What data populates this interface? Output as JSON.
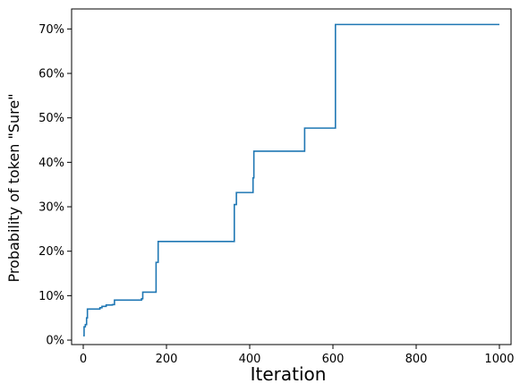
{
  "chart_data": {
    "type": "line",
    "title": "",
    "xlabel": "Iteration",
    "ylabel": "Probability of token \"Sure\"",
    "xlim": [
      -28,
      1028
    ],
    "ylim": [
      -0.01,
      0.745
    ],
    "x_ticks": [
      0,
      200,
      400,
      600,
      800,
      1000
    ],
    "x_tick_labels": [
      "0",
      "200",
      "400",
      "600",
      "800",
      "1000"
    ],
    "y_ticks": [
      0,
      0.1,
      0.2,
      0.3,
      0.4,
      0.5,
      0.6,
      0.7
    ],
    "y_tick_labels": [
      "0%",
      "10%",
      "20%",
      "30%",
      "40%",
      "50%",
      "60%",
      "70%"
    ],
    "grid": false,
    "line_color": "#1f77b4",
    "series": [
      {
        "step": "post",
        "x": [
          0,
          2,
          5,
          8,
          10,
          40,
          45,
          55,
          70,
          75,
          140,
          143,
          172,
          175,
          180,
          360,
          363,
          368,
          405,
          408,
          410,
          530,
          532,
          604,
          606,
          1000
        ],
        "y": [
          0.01,
          0.03,
          0.035,
          0.05,
          0.07,
          0.073,
          0.076,
          0.079,
          0.08,
          0.09,
          0.093,
          0.108,
          0.108,
          0.175,
          0.222,
          0.222,
          0.305,
          0.332,
          0.332,
          0.365,
          0.425,
          0.425,
          0.477,
          0.477,
          0.71,
          0.71
        ]
      }
    ]
  }
}
